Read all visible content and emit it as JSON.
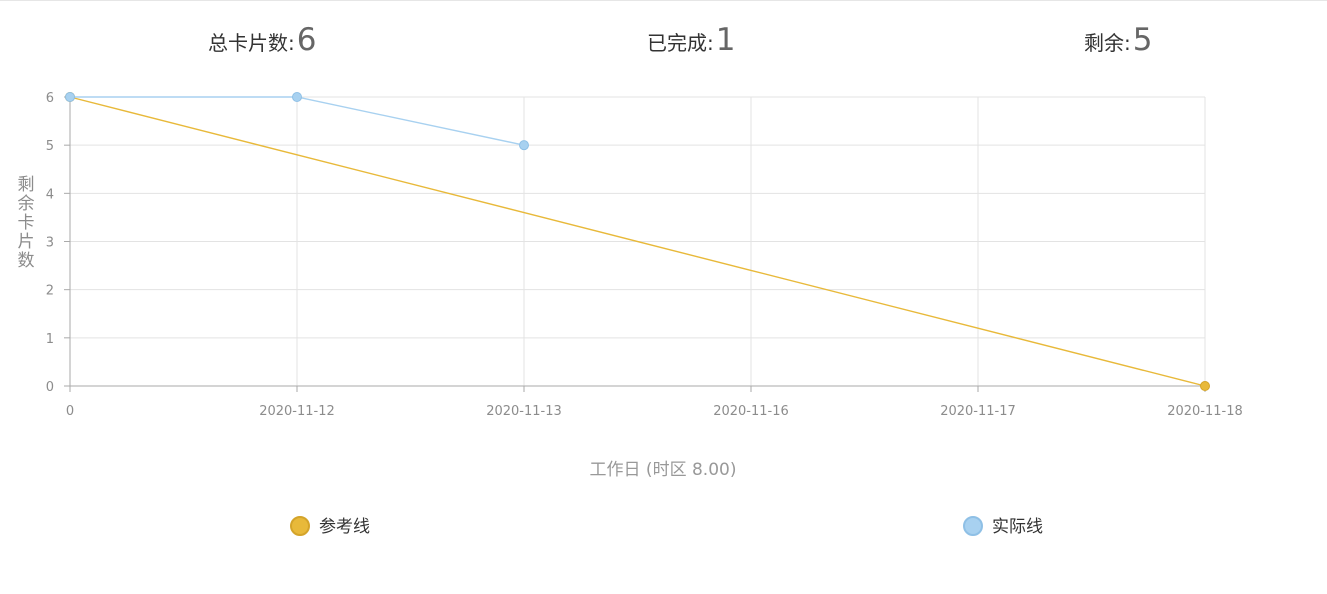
{
  "stats": {
    "total_label": "总卡片数:",
    "total_value": "6",
    "done_label": "已完成:",
    "done_value": "1",
    "remaining_label": "剩余:",
    "remaining_value": "5"
  },
  "chart_data": {
    "type": "line",
    "categories": [
      "0",
      "2020-11-12",
      "2020-11-13",
      "2020-11-16",
      "2020-11-17",
      "2020-11-18"
    ],
    "ylabel": "剩余卡片数",
    "xlabel": "工作日  (时区 8.00)",
    "ylim": [
      0,
      6
    ],
    "yticks": [
      0,
      1,
      2,
      3,
      4,
      5,
      6
    ],
    "grid": true,
    "legend_position": "bottom",
    "series": [
      {
        "name": "参考线",
        "color": "#e8b93a",
        "values": [
          6,
          4.8,
          3.6,
          2.4,
          1.2,
          0
        ],
        "markers": "ends"
      },
      {
        "name": "实际线",
        "color": "#a8d1f0",
        "values": [
          6,
          6,
          5,
          null,
          null,
          null
        ],
        "markers": "all"
      }
    ]
  }
}
